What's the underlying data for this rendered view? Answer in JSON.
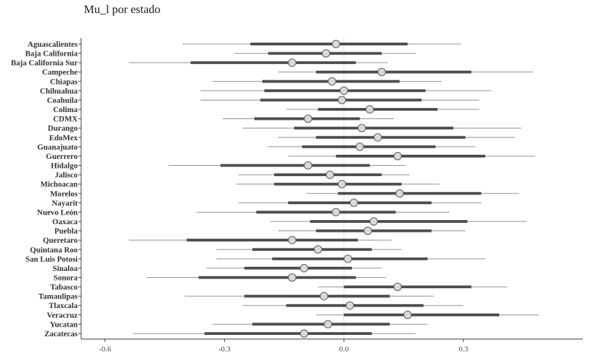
{
  "chart_data": {
    "type": "scatter",
    "subtype": "forest-plot",
    "title": "Mu_l por estado",
    "xlabel": "",
    "ylabel": "",
    "xlim": [
      -0.66,
      0.6
    ],
    "x_ticks": [
      -0.6,
      -0.3,
      0.0,
      0.3
    ],
    "x_tick_labels": [
      "-0.6",
      "-0.3",
      "0.0",
      "0.3"
    ],
    "reference_line": 0.0,
    "grid": false,
    "legend": "none",
    "colors": {
      "thick_interval": "#4d4d4d",
      "thin_interval": "#8c8c8c",
      "point_fill": "#d9d9d9",
      "point_stroke": "#555555",
      "zero_line": "#e5e5e5"
    },
    "categories": [
      "Aguascalientes",
      "Baja California",
      "Baja California Sur",
      "Campeche",
      "Chiapas",
      "Chihuahua",
      "Coahuila",
      "Colima",
      "CDMX",
      "Durango",
      "EdoMex",
      "Guanajuato",
      "Guerrero",
      "Hidalgo",
      "Jalisco",
      "Michoacan",
      "Morelos",
      "Nayarit",
      "Nuevo León",
      "Oaxaca",
      "Puebla",
      "Queretaro",
      "Quintana Roo",
      "San Luis Potosi",
      "Sinaloa",
      "Sonora",
      "Tabasco",
      "Tamaulipas",
      "Tlaxcala",
      "Veracruz",
      "Yucatan",
      "Zacatecas"
    ],
    "estimate": [
      -0.02,
      -0.045,
      -0.13,
      0.095,
      -0.03,
      0.0,
      -0.005,
      0.065,
      -0.09,
      0.045,
      0.085,
      0.04,
      0.135,
      -0.09,
      -0.035,
      -0.005,
      0.14,
      0.025,
      -0.02,
      0.075,
      0.06,
      -0.13,
      -0.065,
      0.01,
      -0.1,
      -0.13,
      0.135,
      -0.05,
      0.015,
      0.16,
      -0.04,
      -0.1
    ],
    "inner_low": [
      -0.235,
      -0.19,
      -0.385,
      -0.07,
      -0.205,
      -0.2,
      -0.21,
      -0.065,
      -0.225,
      -0.125,
      -0.07,
      -0.105,
      -0.02,
      -0.31,
      -0.175,
      -0.175,
      -0.015,
      -0.14,
      -0.22,
      -0.085,
      -0.07,
      -0.395,
      -0.23,
      -0.18,
      -0.25,
      -0.365,
      0.0,
      -0.25,
      -0.145,
      0.0,
      -0.23,
      -0.35
    ],
    "inner_high": [
      0.16,
      0.095,
      0.03,
      0.32,
      0.14,
      0.205,
      0.195,
      0.235,
      0.04,
      0.275,
      0.305,
      0.23,
      0.355,
      0.065,
      0.095,
      0.145,
      0.345,
      0.22,
      0.13,
      0.31,
      0.22,
      0.035,
      0.07,
      0.21,
      0.02,
      0.03,
      0.32,
      0.115,
      0.2,
      0.39,
      0.115,
      0.07
    ],
    "outer_low": [
      -0.405,
      -0.275,
      -0.54,
      -0.165,
      -0.33,
      -0.36,
      -0.36,
      -0.145,
      -0.305,
      -0.255,
      -0.165,
      -0.19,
      -0.14,
      -0.44,
      -0.265,
      -0.27,
      -0.095,
      -0.265,
      -0.37,
      -0.185,
      -0.165,
      -0.54,
      -0.32,
      -0.32,
      -0.345,
      -0.495,
      -0.065,
      -0.4,
      -0.255,
      -0.07,
      -0.33,
      -0.53
    ],
    "outer_high": [
      0.295,
      0.18,
      0.11,
      0.475,
      0.245,
      0.37,
      0.34,
      0.34,
      0.125,
      0.445,
      0.43,
      0.33,
      0.48,
      0.155,
      0.165,
      0.24,
      0.44,
      0.345,
      0.265,
      0.46,
      0.305,
      0.12,
      0.145,
      0.355,
      0.095,
      0.105,
      0.41,
      0.225,
      0.3,
      0.49,
      0.21,
      0.18
    ]
  }
}
